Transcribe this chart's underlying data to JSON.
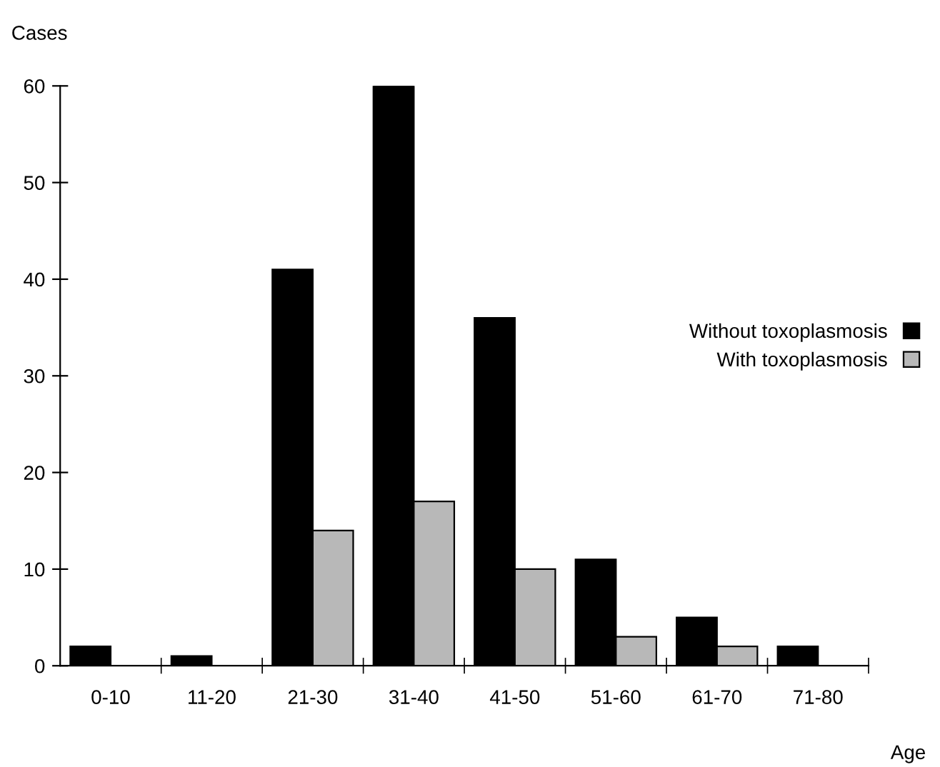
{
  "chart_data": {
    "type": "bar",
    "ylabel": "Cases",
    "xlabel": "Age",
    "categories": [
      "0-10",
      "11-20",
      "21-30",
      "31-40",
      "41-50",
      "51-60",
      "61-70",
      "71-80"
    ],
    "series": [
      {
        "name": "Without toxoplasmosis",
        "color": "#000000",
        "values": [
          2,
          1,
          41,
          60,
          36,
          11,
          5,
          2
        ]
      },
      {
        "name": "With toxoplasmosis",
        "color": "#b8b8b8",
        "values": [
          0,
          0,
          14,
          17,
          10,
          3,
          2,
          0
        ]
      }
    ],
    "ylim": [
      0,
      60
    ],
    "yticks": [
      0,
      10,
      20,
      30,
      40,
      50,
      60
    ],
    "grid": false,
    "legend": "right"
  }
}
